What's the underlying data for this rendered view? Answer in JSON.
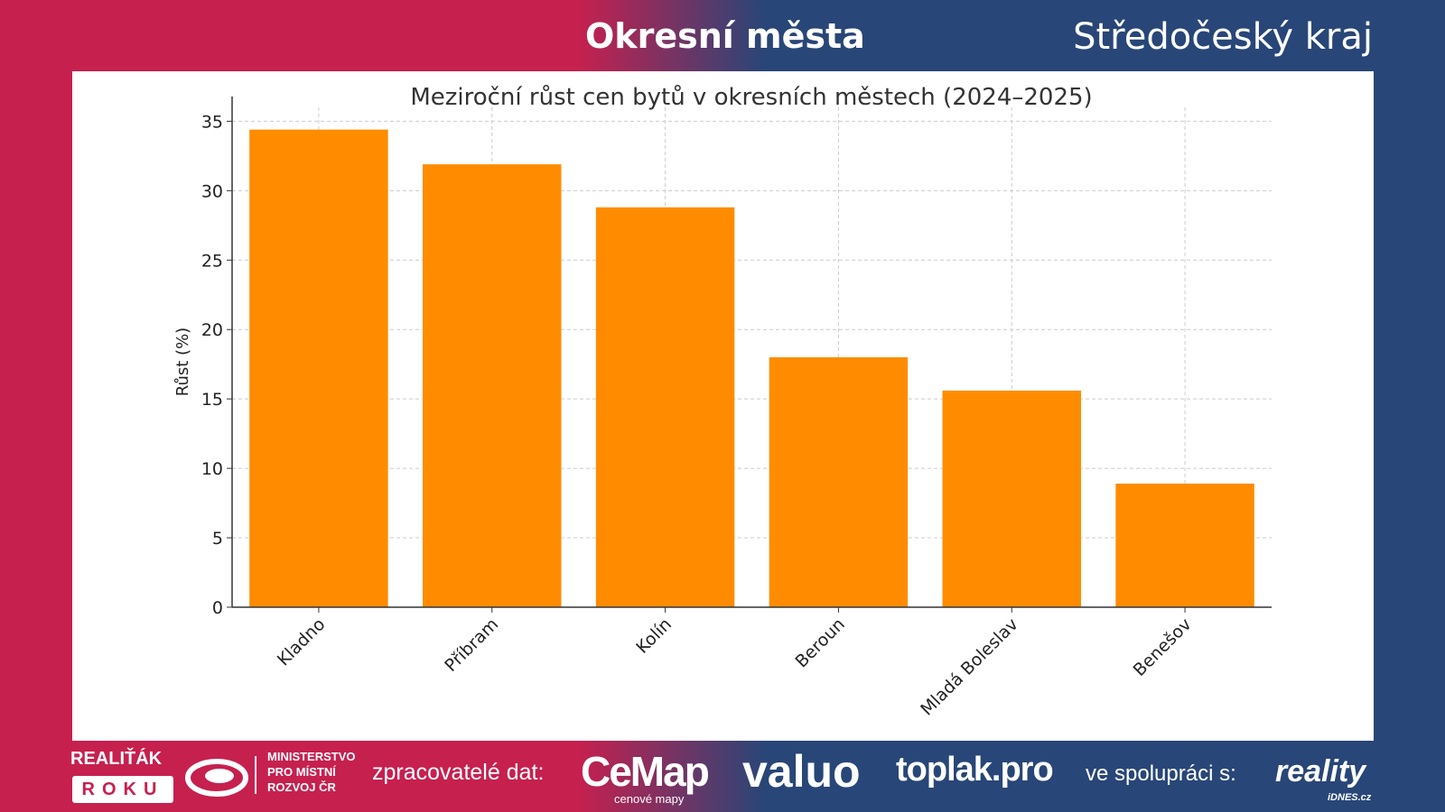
{
  "header": {
    "left": "Okresní města",
    "right": "Středočeský kraj"
  },
  "chart_data": {
    "type": "bar",
    "title": "Meziroční růst cen bytů v okresních městech (2024–2025)",
    "xlabel": "",
    "ylabel": "Růst (%)",
    "categories": [
      "Kladno",
      "Příbram",
      "Kolín",
      "Beroun",
      "Mladá Boleslav",
      "Benešov"
    ],
    "values": [
      34.4,
      31.9,
      28.8,
      18.0,
      15.6,
      8.9
    ],
    "ylim": [
      0,
      36
    ],
    "yticks": [
      0,
      5,
      10,
      15,
      20,
      25,
      30,
      35
    ],
    "grid": true,
    "color": "#ff8c00"
  },
  "footer": {
    "realitak_top": "REALIŤÁK",
    "realitak_bottom": "ROKU",
    "ministry": [
      "MINISTERSTVO",
      "PRO MÍSTNÍ",
      "ROZVOJ ČR"
    ],
    "processors_label": "zpracovatelé dat:",
    "cemap": "CeMap",
    "cemap_sub": "cenové mapy",
    "valuo": "valuo",
    "toplak": "toplak.pro",
    "coop_label": "ve spolupráci s:",
    "reality": "reality",
    "reality_sub": "iDNES.cz"
  }
}
